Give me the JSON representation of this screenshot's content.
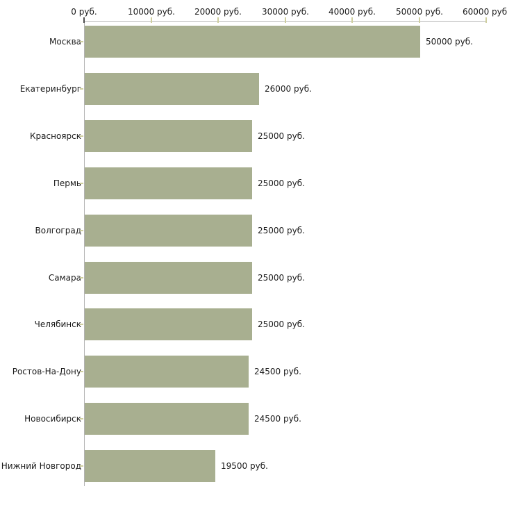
{
  "chart_data": {
    "type": "bar",
    "orientation": "horizontal",
    "title": "",
    "xlabel": "",
    "ylabel": "",
    "xlim": [
      0,
      60000
    ],
    "x_tick_step": 10000,
    "x_ticks": [
      "0 руб.",
      "10000 руб.",
      "20000 руб.",
      "30000 руб.",
      "40000 руб.",
      "50000 руб.",
      "60000 руб."
    ],
    "categories": [
      "Москва",
      "Екатеринбург",
      "Красноярск",
      "Пермь",
      "Волгоград",
      "Самара",
      "Челябинск",
      "Ростов-На-Дону",
      "Новосибирск",
      "Нижний Новгород"
    ],
    "values": [
      50000,
      26000,
      25000,
      25000,
      25000,
      25000,
      25000,
      24500,
      24500,
      19500
    ],
    "value_labels": [
      "50000 руб.",
      "26000 руб.",
      "25000 руб.",
      "25000 руб.",
      "25000 руб.",
      "25000 руб.",
      "25000 руб.",
      "24500 руб.",
      "24500 руб.",
      "19500 руб."
    ],
    "grid": false,
    "legend": "none",
    "colors": {
      "bar": "#a8af90",
      "axis_line": "#b3b3b3",
      "tick": "#cfcf9f",
      "tick_zero": "#4d4d4d",
      "text": "#1a1a1a"
    }
  }
}
